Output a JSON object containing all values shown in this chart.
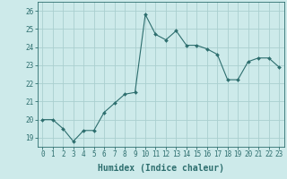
{
  "x": [
    0,
    1,
    2,
    3,
    4,
    5,
    6,
    7,
    8,
    9,
    10,
    11,
    12,
    13,
    14,
    15,
    16,
    17,
    18,
    19,
    20,
    21,
    22,
    23
  ],
  "y": [
    20.0,
    20.0,
    19.5,
    18.8,
    19.4,
    19.4,
    20.4,
    20.9,
    21.4,
    21.5,
    25.8,
    24.7,
    24.4,
    24.9,
    24.1,
    24.1,
    23.9,
    23.6,
    22.2,
    22.2,
    23.2,
    23.4,
    23.4,
    22.9
  ],
  "line_color": "#2d6e6e",
  "marker": "D",
  "marker_size": 2,
  "bg_color": "#cdeaea",
  "grid_color": "#aacfcf",
  "xlabel": "Humidex (Indice chaleur)",
  "ylim": [
    18.5,
    26.5
  ],
  "yticks": [
    19,
    20,
    21,
    22,
    23,
    24,
    25,
    26
  ],
  "xlim": [
    -0.5,
    23.5
  ],
  "xticks": [
    0,
    1,
    2,
    3,
    4,
    5,
    6,
    7,
    8,
    9,
    10,
    11,
    12,
    13,
    14,
    15,
    16,
    17,
    18,
    19,
    20,
    21,
    22,
    23
  ],
  "tick_color": "#2d6e6e",
  "label_color": "#2d6e6e",
  "axis_color": "#2d6e6e",
  "xlabel_fontsize": 7,
  "tick_fontsize": 5.5
}
